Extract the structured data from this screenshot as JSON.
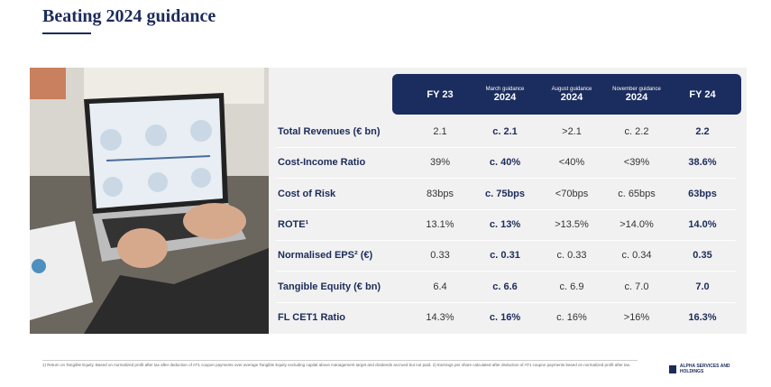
{
  "header": {
    "title": "Beating 2024 guidance"
  },
  "table": {
    "columns": [
      "FY 23",
      {
        "top": "March guidance",
        "year": "2024"
      },
      {
        "top": "August guidance",
        "year": "2024"
      },
      {
        "top": "November guidance",
        "year": "2024"
      },
      "FY 24"
    ],
    "rows": [
      [
        "Total Revenues (€ bn)",
        "2.1",
        "c. 2.1",
        ">2.1",
        "c. 2.2",
        "2.2"
      ],
      [
        "Cost-Income Ratio",
        "39%",
        "c. 40%",
        "<40%",
        "<39%",
        "38.6%"
      ],
      [
        "Cost of Risk",
        "83bps",
        "c. 75bps",
        "<70bps",
        "c. 65bps",
        "63bps"
      ],
      [
        "ROTE¹",
        "13.1%",
        "c. 13%",
        ">13.5%",
        ">14.0%",
        "14.0%"
      ],
      [
        "Normalised EPS² (€)",
        "0.33",
        "c. 0.31",
        "c. 0.33",
        "c. 0.34",
        "0.35"
      ],
      [
        "Tangible Equity (€ bn)",
        "6.4",
        "c. 6.6",
        "c. 6.9",
        "c. 7.0",
        "7.0"
      ],
      [
        "FL CET1 Ratio",
        "14.3%",
        "c. 16%",
        "c. 16%",
        ">16%",
        "16.3%"
      ]
    ]
  },
  "footnote": "1) Return on Tangible Equity. Based on normalized profit after tax after deduction of AT1 coupon payments over average Tangible Equity excluding capital above management target and dividends accrued but not paid. 2) Earnings per share calculated after deduction of AT1 coupon payments based on normalized profit after tax.",
  "logo": "ALPHA SERVICES AND HOLDINGS"
}
